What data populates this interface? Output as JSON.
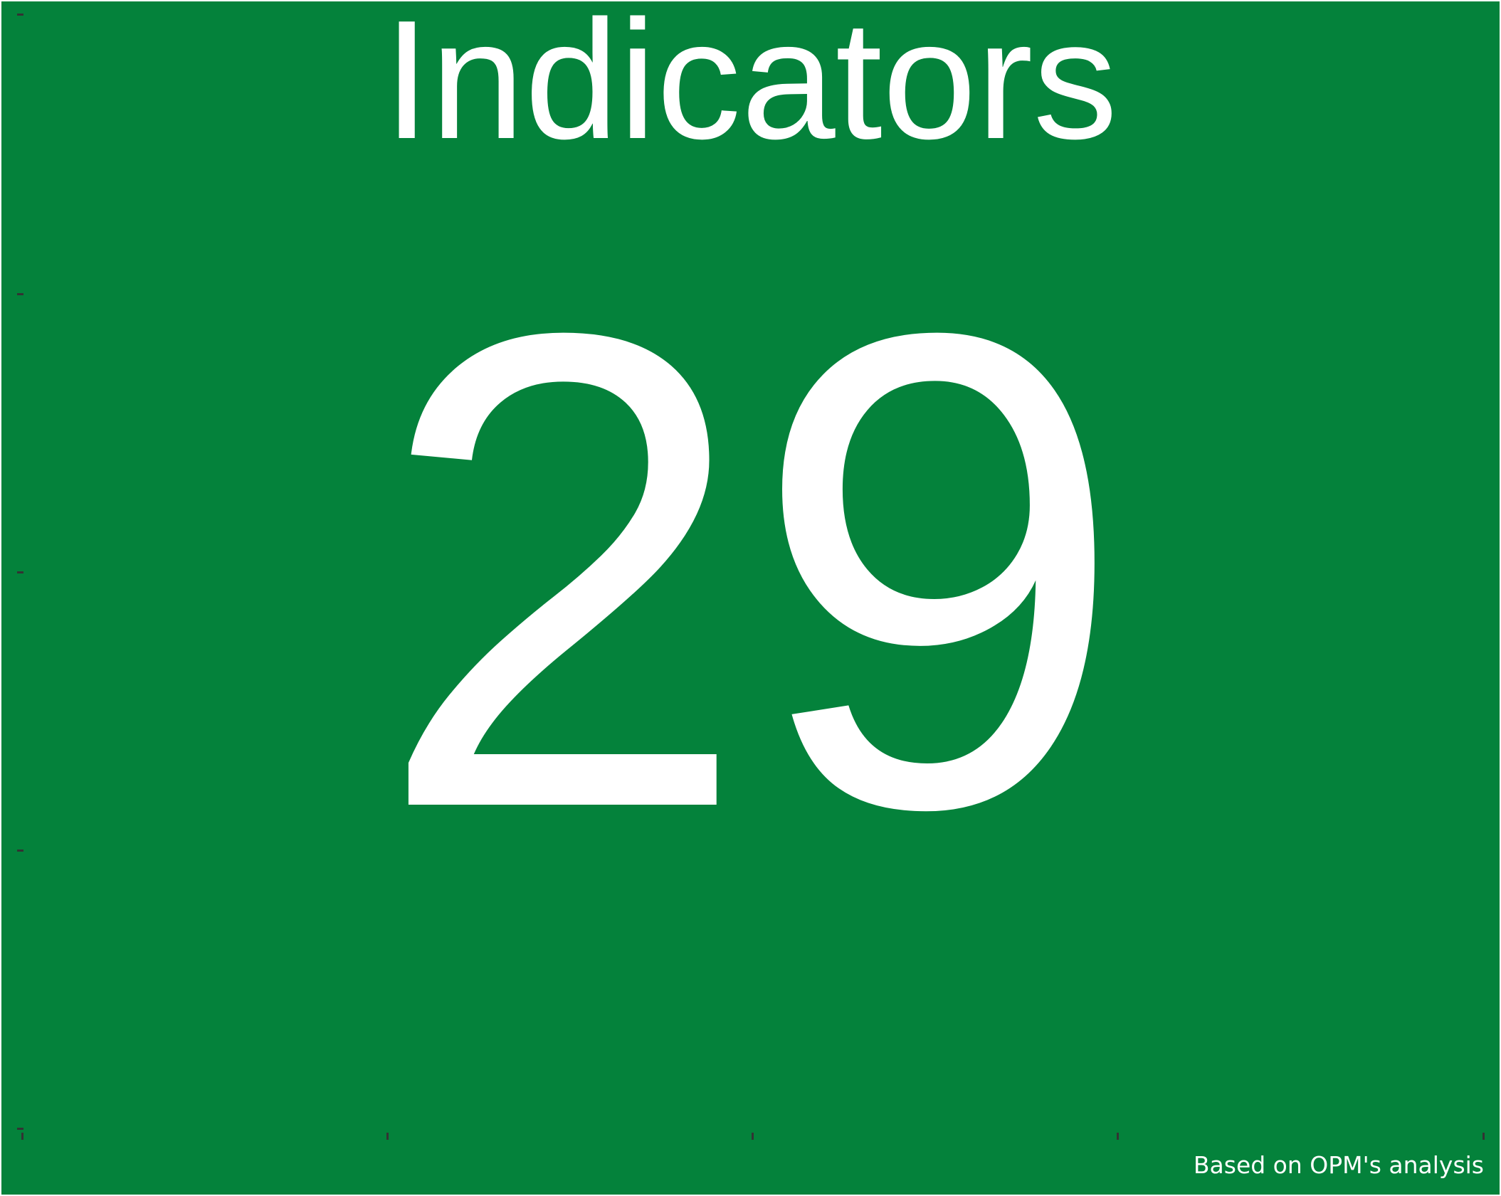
{
  "kpi": {
    "title": "Indicators",
    "value": "29",
    "caption": "Based on OPM's analysis",
    "background_color": "#04823B",
    "text_color": "#FFFFFF"
  }
}
